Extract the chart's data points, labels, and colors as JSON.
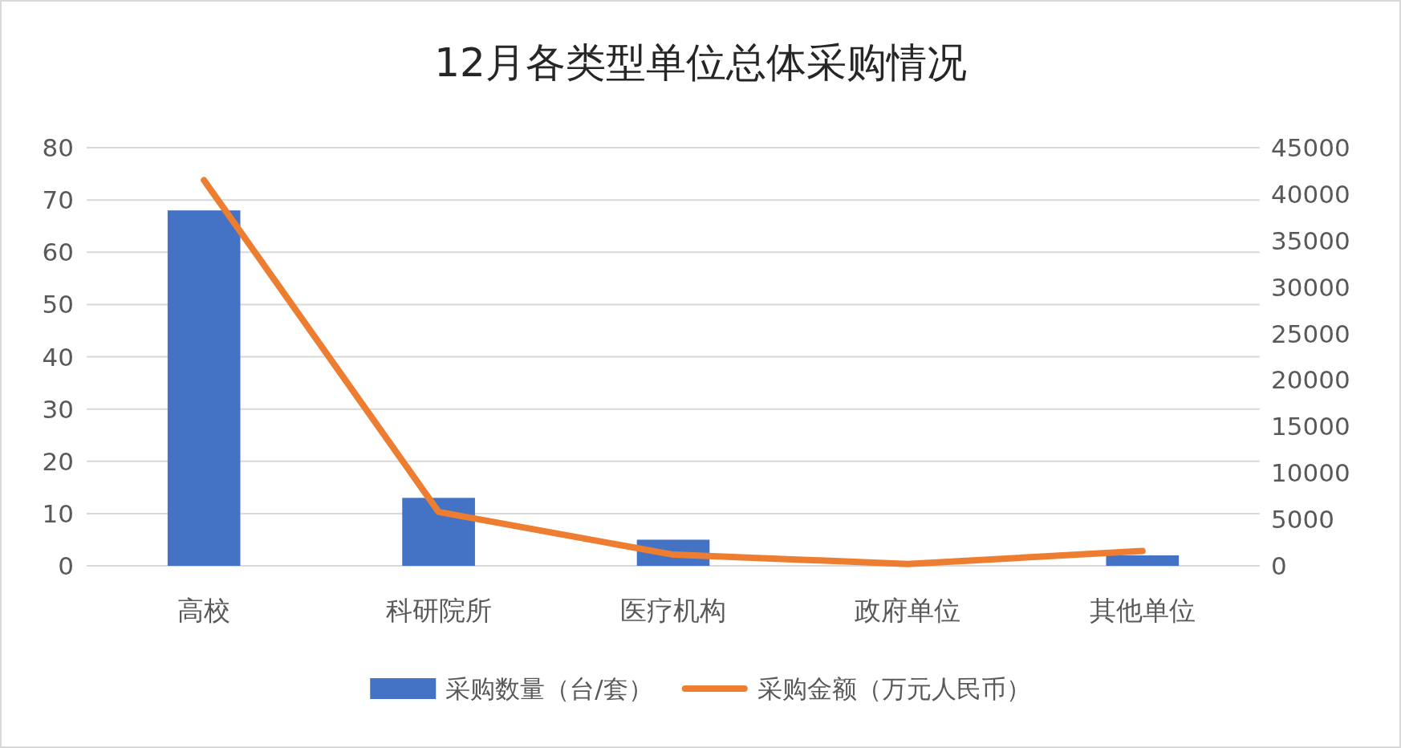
{
  "chart_data": {
    "type": "bar",
    "title": "12月各类型单位总体采购情况",
    "categories": [
      "高校",
      "科研院所",
      "医疗机构",
      "政府单位",
      "其他单位"
    ],
    "series": [
      {
        "name": "采购数量（台/套）",
        "color": "#4472c4",
        "values": [
          68,
          13,
          5,
          0,
          2
        ]
      },
      {
        "name": "采购金额（万元人民币）",
        "type": "line",
        "axis": "y2",
        "color": "#ed7d31",
        "values": [
          41500,
          5800,
          1200,
          200,
          1600
        ]
      }
    ],
    "ylim": [
      0,
      80
    ],
    "yticks": [
      0,
      10,
      20,
      30,
      40,
      50,
      60,
      70,
      80
    ],
    "y2lim": [
      0,
      45000
    ],
    "y2ticks": [
      0,
      5000,
      10000,
      15000,
      20000,
      25000,
      30000,
      35000,
      40000,
      45000
    ],
    "grid": "y",
    "legend": "bottom",
    "marker": "none",
    "line_style": "solid"
  }
}
